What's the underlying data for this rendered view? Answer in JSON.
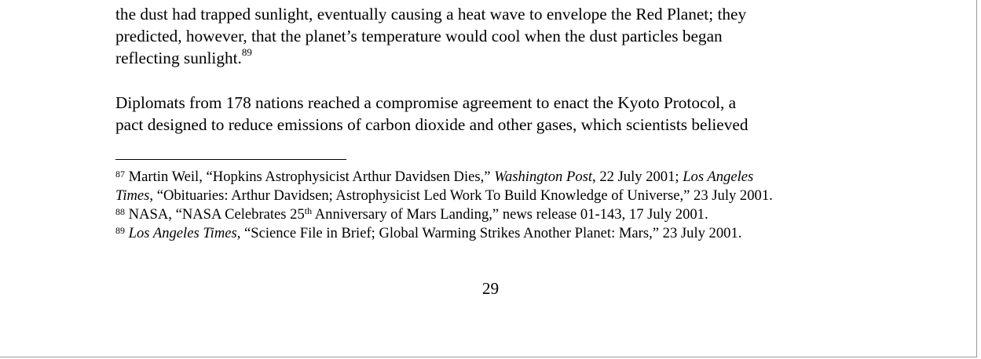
{
  "paragraph1": {
    "line1": "the dust had trapped sunlight, eventually causing a heat wave to envelope the Red Planet; they",
    "line2": "predicted, however, that the planet’s temperature would cool when the dust particles began",
    "line3_text": "reflecting sunlight.",
    "line3_ref": "89"
  },
  "paragraph2": {
    "line1": "Diplomats from 178 nations reached a compromise agreement to enact the Kyoto Protocol, a",
    "line2": "pact designed to reduce emissions of carbon dioxide and other gases, which scientists believed"
  },
  "footnotes": [
    {
      "number": "87",
      "part1": " Martin Weil, “Hopkins Astrophysicist Arthur Davidsen Dies,” ",
      "italic1": "Washington Post",
      "part2": ", 22 July 2001; ",
      "italic2a": "Los Angeles",
      "italic2b": "Times",
      "part3": ", “Obituaries: Arthur Davidsen; Astrophysicist Led Work To Build Knowledge of Universe,” 23 July 2001."
    },
    {
      "number": "88",
      "part1": " NASA, “NASA Celebrates 25",
      "superscript": "th",
      "part2": " Anniversary of Mars Landing,” news release 01-143, 17 July 2001."
    },
    {
      "number": "89",
      "italic1": "Los Angeles Times",
      "part1": ", “Science File in Brief; Global Warming Strikes Another Planet: Mars,” 23 July 2001."
    }
  ],
  "page_number": "29"
}
